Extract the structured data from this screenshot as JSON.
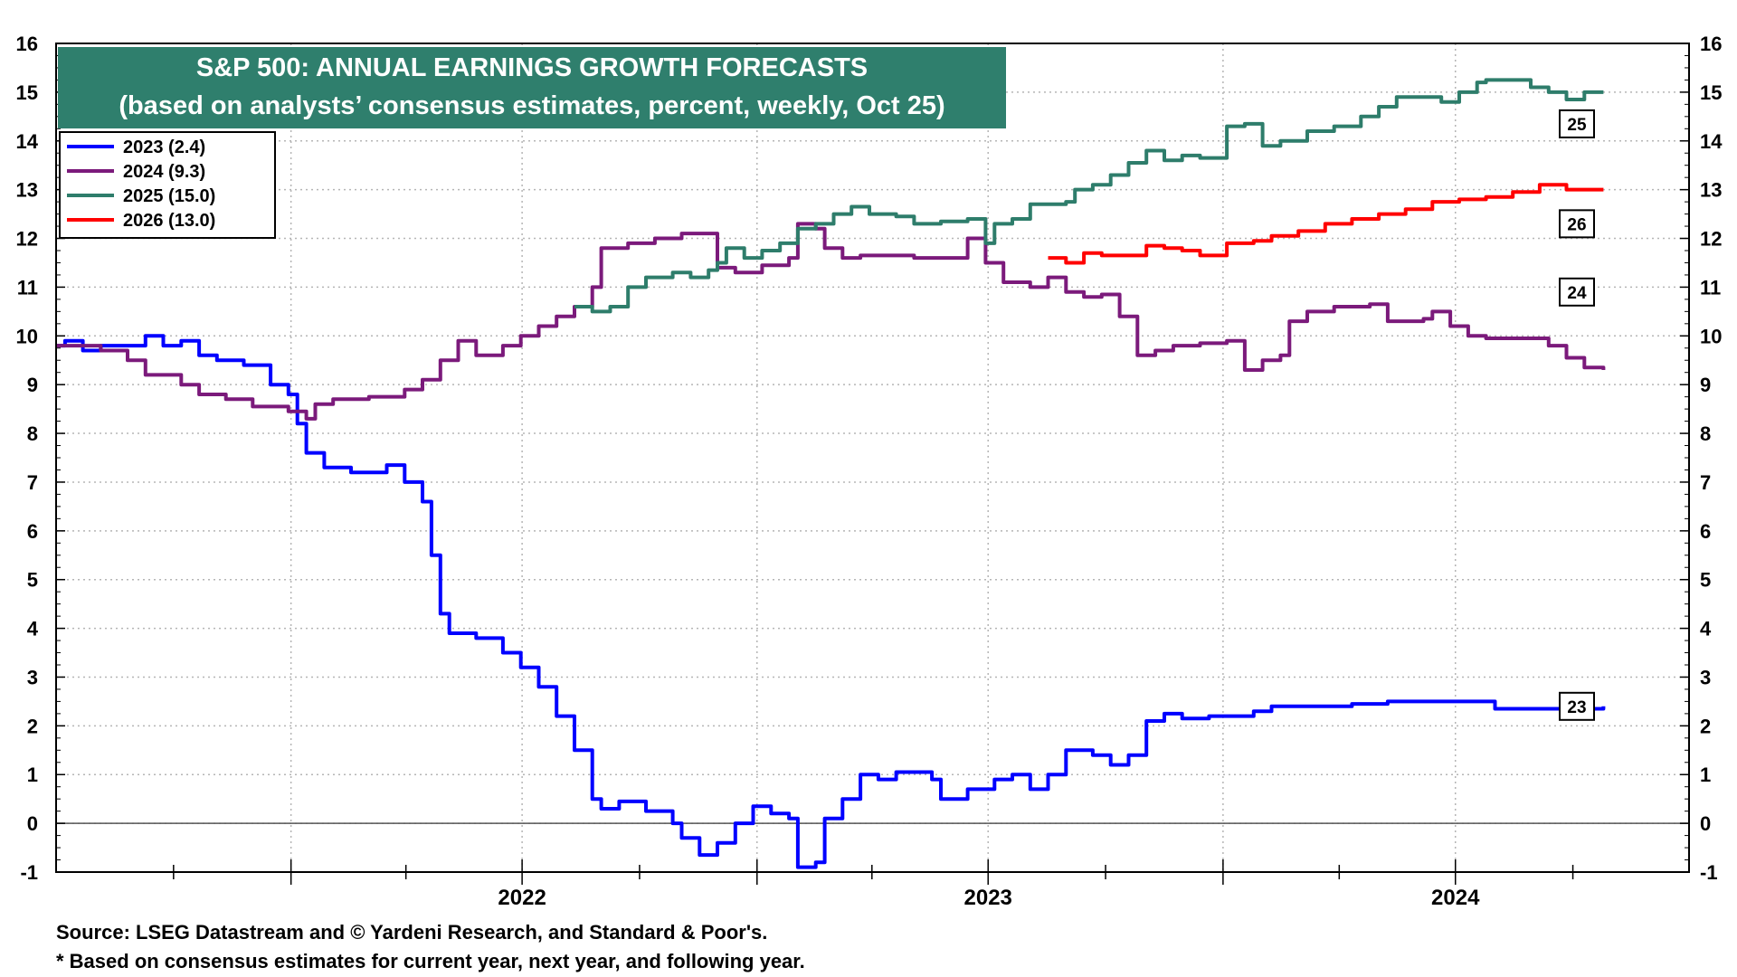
{
  "chart_data": {
    "type": "line",
    "title": "S&P 500: ANNUAL EARNINGS GROWTH FORECASTS",
    "subtitle": "(based on analysts’ consensus estimates, percent, weekly, Oct 25)",
    "xlabel": "",
    "ylabel": "",
    "ylim": [
      -1,
      16
    ],
    "yticks": [
      -1,
      0,
      1,
      2,
      3,
      4,
      5,
      6,
      7,
      8,
      9,
      10,
      11,
      12,
      13,
      14,
      15,
      16
    ],
    "xlim": [
      "2021-07-01",
      "2024-12-31"
    ],
    "xtick_labels": [
      "2022",
      "2023",
      "2024"
    ],
    "grid": true,
    "legend_position": "top-left",
    "series": [
      {
        "name": "2023 (2.4)",
        "end_label": "23",
        "color": "#0000ff",
        "points": [
          [
            "2021-07-01",
            9.8
          ],
          [
            "2021-07-08",
            9.9
          ],
          [
            "2021-07-22",
            9.7
          ],
          [
            "2021-08-05",
            9.8
          ],
          [
            "2021-08-26",
            9.8
          ],
          [
            "2021-09-09",
            10.0
          ],
          [
            "2021-09-23",
            9.8
          ],
          [
            "2021-10-07",
            9.9
          ],
          [
            "2021-10-21",
            9.6
          ],
          [
            "2021-11-04",
            9.5
          ],
          [
            "2021-11-25",
            9.4
          ],
          [
            "2021-12-16",
            9.0
          ],
          [
            "2021-12-30",
            8.8
          ],
          [
            "2022-01-06",
            8.2
          ],
          [
            "2022-01-13",
            7.6
          ],
          [
            "2022-01-27",
            7.3
          ],
          [
            "2022-02-17",
            7.2
          ],
          [
            "2022-03-10",
            7.2
          ],
          [
            "2022-03-17",
            7.35
          ],
          [
            "2022-03-31",
            7.0
          ],
          [
            "2022-04-14",
            6.6
          ],
          [
            "2022-04-21",
            5.5
          ],
          [
            "2022-04-28",
            4.3
          ],
          [
            "2022-05-05",
            3.9
          ],
          [
            "2022-05-26",
            3.8
          ],
          [
            "2022-06-16",
            3.5
          ],
          [
            "2022-06-30",
            3.2
          ],
          [
            "2022-07-14",
            2.8
          ],
          [
            "2022-07-28",
            2.2
          ],
          [
            "2022-08-11",
            1.5
          ],
          [
            "2022-08-25",
            0.5
          ],
          [
            "2022-09-01",
            0.3
          ],
          [
            "2022-09-15",
            0.45
          ],
          [
            "2022-10-06",
            0.25
          ],
          [
            "2022-10-27",
            0.0
          ],
          [
            "2022-11-03",
            -0.3
          ],
          [
            "2022-11-17",
            -0.65
          ],
          [
            "2022-12-01",
            -0.4
          ],
          [
            "2022-12-15",
            0.0
          ],
          [
            "2022-12-29",
            0.35
          ],
          [
            "2023-01-12",
            0.2
          ],
          [
            "2023-01-26",
            0.1
          ],
          [
            "2023-02-02",
            -0.9
          ],
          [
            "2023-02-16",
            -0.8
          ],
          [
            "2023-02-23",
            0.1
          ],
          [
            "2023-03-09",
            0.5
          ],
          [
            "2023-03-23",
            1.0
          ],
          [
            "2023-04-06",
            0.9
          ],
          [
            "2023-04-20",
            1.05
          ],
          [
            "2023-05-04",
            1.05
          ],
          [
            "2023-05-18",
            0.9
          ],
          [
            "2023-05-25",
            0.5
          ],
          [
            "2023-06-15",
            0.7
          ],
          [
            "2023-07-06",
            0.9
          ],
          [
            "2023-07-20",
            1.0
          ],
          [
            "2023-08-03",
            0.7
          ],
          [
            "2023-08-17",
            1.0
          ],
          [
            "2023-08-31",
            1.5
          ],
          [
            "2023-09-21",
            1.4
          ],
          [
            "2023-10-05",
            1.2
          ],
          [
            "2023-10-19",
            1.4
          ],
          [
            "2023-11-02",
            2.1
          ],
          [
            "2023-11-16",
            2.25
          ],
          [
            "2023-11-30",
            2.15
          ],
          [
            "2023-12-21",
            2.2
          ],
          [
            "2024-01-25",
            2.3
          ],
          [
            "2024-02-08",
            2.4
          ],
          [
            "2024-03-14",
            2.4
          ],
          [
            "2024-04-11",
            2.45
          ],
          [
            "2024-05-09",
            2.5
          ],
          [
            "2024-06-13",
            2.5
          ],
          [
            "2024-07-18",
            2.5
          ],
          [
            "2024-08-01",
            2.35
          ],
          [
            "2024-10-25",
            2.4
          ]
        ]
      },
      {
        "name": "2024 (9.3)",
        "end_label": "24",
        "color": "#7b1a7b",
        "points": [
          [
            "2021-07-01",
            9.8
          ],
          [
            "2021-08-05",
            9.7
          ],
          [
            "2021-08-26",
            9.5
          ],
          [
            "2021-09-09",
            9.2
          ],
          [
            "2021-10-07",
            9.0
          ],
          [
            "2021-10-21",
            8.8
          ],
          [
            "2021-11-11",
            8.7
          ],
          [
            "2021-12-02",
            8.55
          ],
          [
            "2021-12-30",
            8.45
          ],
          [
            "2022-01-13",
            8.3
          ],
          [
            "2022-01-20",
            8.6
          ],
          [
            "2022-02-03",
            8.7
          ],
          [
            "2022-03-03",
            8.75
          ],
          [
            "2022-03-31",
            8.9
          ],
          [
            "2022-04-14",
            9.1
          ],
          [
            "2022-04-28",
            9.5
          ],
          [
            "2022-05-12",
            9.9
          ],
          [
            "2022-05-26",
            9.6
          ],
          [
            "2022-06-16",
            9.8
          ],
          [
            "2022-06-30",
            10.0
          ],
          [
            "2022-07-14",
            10.2
          ],
          [
            "2022-07-28",
            10.4
          ],
          [
            "2022-08-11",
            10.6
          ],
          [
            "2022-08-25",
            11.0
          ],
          [
            "2022-09-01",
            11.8
          ],
          [
            "2022-09-22",
            11.9
          ],
          [
            "2022-10-13",
            12.0
          ],
          [
            "2022-11-03",
            12.1
          ],
          [
            "2022-11-17",
            12.1
          ],
          [
            "2022-12-01",
            11.4
          ],
          [
            "2022-12-15",
            11.3
          ],
          [
            "2023-01-05",
            11.45
          ],
          [
            "2023-01-26",
            11.6
          ],
          [
            "2023-02-02",
            12.3
          ],
          [
            "2023-02-16",
            12.2
          ],
          [
            "2023-02-23",
            11.8
          ],
          [
            "2023-03-09",
            11.6
          ],
          [
            "2023-03-23",
            11.65
          ],
          [
            "2023-05-04",
            11.6
          ],
          [
            "2023-06-01",
            11.6
          ],
          [
            "2023-06-15",
            12.0
          ],
          [
            "2023-06-29",
            11.5
          ],
          [
            "2023-07-13",
            11.1
          ],
          [
            "2023-08-03",
            11.0
          ],
          [
            "2023-08-17",
            11.2
          ],
          [
            "2023-08-31",
            10.9
          ],
          [
            "2023-09-14",
            10.8
          ],
          [
            "2023-09-28",
            10.85
          ],
          [
            "2023-10-12",
            10.4
          ],
          [
            "2023-10-26",
            9.6
          ],
          [
            "2023-11-09",
            9.7
          ],
          [
            "2023-11-23",
            9.8
          ],
          [
            "2023-12-14",
            9.85
          ],
          [
            "2024-01-04",
            9.9
          ],
          [
            "2024-01-18",
            9.3
          ],
          [
            "2024-02-01",
            9.5
          ],
          [
            "2024-02-15",
            9.6
          ],
          [
            "2024-02-22",
            10.3
          ],
          [
            "2024-03-07",
            10.5
          ],
          [
            "2024-03-28",
            10.6
          ],
          [
            "2024-04-25",
            10.65
          ],
          [
            "2024-05-09",
            10.3
          ],
          [
            "2024-06-06",
            10.35
          ],
          [
            "2024-06-13",
            10.5
          ],
          [
            "2024-06-27",
            10.2
          ],
          [
            "2024-07-11",
            10.0
          ],
          [
            "2024-07-25",
            9.95
          ],
          [
            "2024-08-22",
            9.95
          ],
          [
            "2024-09-12",
            9.8
          ],
          [
            "2024-09-26",
            9.55
          ],
          [
            "2024-10-10",
            9.35
          ],
          [
            "2024-10-25",
            9.3
          ]
        ]
      },
      {
        "name": "2025 (15.0)",
        "end_label": "25",
        "color": "#2e7d6b",
        "points": [
          [
            "2022-08-11",
            10.6
          ],
          [
            "2022-08-25",
            10.5
          ],
          [
            "2022-09-08",
            10.6
          ],
          [
            "2022-09-22",
            11.0
          ],
          [
            "2022-10-06",
            11.2
          ],
          [
            "2022-10-27",
            11.3
          ],
          [
            "2022-11-10",
            11.2
          ],
          [
            "2022-11-24",
            11.35
          ],
          [
            "2022-12-01",
            11.5
          ],
          [
            "2022-12-08",
            11.8
          ],
          [
            "2022-12-22",
            11.6
          ],
          [
            "2023-01-05",
            11.75
          ],
          [
            "2023-01-19",
            11.9
          ],
          [
            "2023-02-02",
            12.2
          ],
          [
            "2023-02-16",
            12.3
          ],
          [
            "2023-03-02",
            12.5
          ],
          [
            "2023-03-16",
            12.65
          ],
          [
            "2023-03-30",
            12.5
          ],
          [
            "2023-04-20",
            12.45
          ],
          [
            "2023-05-04",
            12.3
          ],
          [
            "2023-05-25",
            12.35
          ],
          [
            "2023-06-15",
            12.4
          ],
          [
            "2023-06-29",
            11.9
          ],
          [
            "2023-07-06",
            12.3
          ],
          [
            "2023-07-20",
            12.4
          ],
          [
            "2023-08-03",
            12.7
          ],
          [
            "2023-08-31",
            12.75
          ],
          [
            "2023-09-07",
            13.0
          ],
          [
            "2023-09-21",
            13.1
          ],
          [
            "2023-10-05",
            13.3
          ],
          [
            "2023-10-19",
            13.55
          ],
          [
            "2023-11-02",
            13.8
          ],
          [
            "2023-11-16",
            13.6
          ],
          [
            "2023-11-30",
            13.7
          ],
          [
            "2023-12-14",
            13.65
          ],
          [
            "2024-01-04",
            14.3
          ],
          [
            "2024-01-18",
            14.35
          ],
          [
            "2024-02-01",
            13.9
          ],
          [
            "2024-02-15",
            14.0
          ],
          [
            "2024-03-07",
            14.2
          ],
          [
            "2024-03-28",
            14.3
          ],
          [
            "2024-04-18",
            14.5
          ],
          [
            "2024-05-02",
            14.7
          ],
          [
            "2024-05-16",
            14.9
          ],
          [
            "2024-06-06",
            14.9
          ],
          [
            "2024-06-20",
            14.8
          ],
          [
            "2024-07-04",
            15.0
          ],
          [
            "2024-07-18",
            15.2
          ],
          [
            "2024-07-25",
            15.25
          ],
          [
            "2024-08-29",
            15.1
          ],
          [
            "2024-09-12",
            15.0
          ],
          [
            "2024-09-26",
            14.85
          ],
          [
            "2024-10-10",
            15.0
          ],
          [
            "2024-10-25",
            15.0
          ]
        ]
      },
      {
        "name": "2026 (13.0)",
        "end_label": "26",
        "color": "#ff0000",
        "points": [
          [
            "2023-08-17",
            11.6
          ],
          [
            "2023-08-31",
            11.5
          ],
          [
            "2023-09-14",
            11.7
          ],
          [
            "2023-09-28",
            11.65
          ],
          [
            "2023-10-19",
            11.65
          ],
          [
            "2023-11-02",
            11.85
          ],
          [
            "2023-11-16",
            11.8
          ],
          [
            "2023-11-30",
            11.75
          ],
          [
            "2023-12-14",
            11.65
          ],
          [
            "2024-01-04",
            11.9
          ],
          [
            "2024-01-25",
            11.95
          ],
          [
            "2024-02-08",
            12.05
          ],
          [
            "2024-02-29",
            12.15
          ],
          [
            "2024-03-21",
            12.3
          ],
          [
            "2024-04-11",
            12.4
          ],
          [
            "2024-05-02",
            12.5
          ],
          [
            "2024-05-23",
            12.6
          ],
          [
            "2024-06-13",
            12.75
          ],
          [
            "2024-07-04",
            12.8
          ],
          [
            "2024-07-25",
            12.85
          ],
          [
            "2024-08-15",
            12.95
          ],
          [
            "2024-09-05",
            13.1
          ],
          [
            "2024-09-26",
            13.0
          ],
          [
            "2024-10-25",
            13.0
          ]
        ]
      }
    ]
  },
  "source": {
    "line1": "Source: LSEG Datastream and © Yardeni Research, and Standard & Poor's.",
    "line2": "* Based on consensus estimates for current year, next year, and following year."
  }
}
